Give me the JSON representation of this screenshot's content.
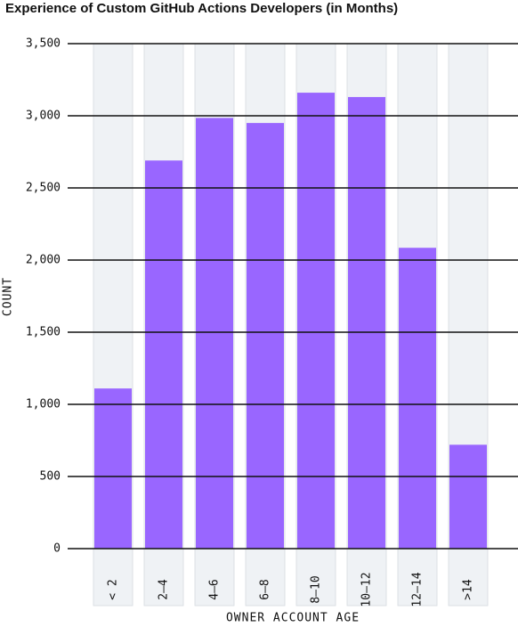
{
  "chart_data": {
    "type": "bar",
    "title": "Experience of Custom GitHub Actions Developers (in Months)",
    "x_label": "OWNER ACCOUNT AGE",
    "y_label": "COUNT",
    "categories": [
      "< 2",
      "2–4",
      "4–6",
      "6–8",
      "8–10",
      "10–12",
      "12–14",
      ">14"
    ],
    "values": [
      1110,
      2690,
      2985,
      2950,
      3160,
      3130,
      2085,
      720
    ],
    "color": "#9966ff",
    "ylim": [
      0,
      3500
    ],
    "yticks": [
      0,
      500,
      {
        "value": 1000,
        "label": "1,000"
      },
      {
        "value": 1500,
        "label": "1,500"
      },
      {
        "value": 2000,
        "label": "2,000"
      },
      {
        "value": 2500,
        "label": "2,500"
      },
      {
        "value": 3000,
        "label": "3,000"
      },
      {
        "value": 3500,
        "label": "3,500"
      }
    ],
    "grid": true
  }
}
